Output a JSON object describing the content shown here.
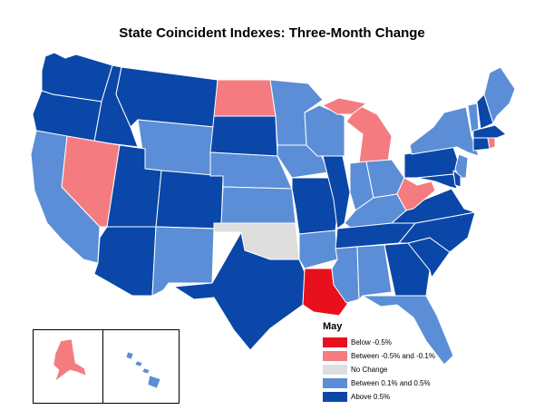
{
  "title": "State Coincident Indexes: Three-Month Change",
  "legend": {
    "title": "May",
    "items": [
      {
        "label": "Below -0.5%",
        "color": "#e8101c"
      },
      {
        "label": "Between -0.5% and -0.1%",
        "color": "#f47c80"
      },
      {
        "label": "No Change",
        "color": "#dedede"
      },
      {
        "label": "Between 0.1% and 0.5%",
        "color": "#5b8ed6"
      },
      {
        "label": "Above 0.5%",
        "color": "#0a47a8"
      }
    ]
  },
  "colors": {
    "below": "#e8101c",
    "slightly_below": "#f47c80",
    "no_change": "#dedede",
    "slightly_above": "#5b8ed6",
    "above": "#0a47a8",
    "border": "#ffffff"
  },
  "states": {
    "WA": "above",
    "OR": "above",
    "ID": "above",
    "MT": "above",
    "WY": "slightly_above",
    "CA": "slightly_above",
    "NV": "slightly_below",
    "UT": "above",
    "CO": "above",
    "AZ": "above",
    "NM": "slightly_above",
    "ND": "slightly_below",
    "SD": "above",
    "NE": "slightly_above",
    "KS": "slightly_above",
    "OK": "no_change",
    "TX": "above",
    "MN": "slightly_above",
    "IA": "slightly_above",
    "MO": "above",
    "AR": "slightly_above",
    "LA": "below",
    "WI": "slightly_above",
    "IL": "above",
    "MI": "slightly_below",
    "IN": "slightly_above",
    "OH": "slightly_above",
    "KY": "slightly_above",
    "TN": "above",
    "MS": "slightly_above",
    "AL": "slightly_above",
    "GA": "above",
    "FL": "slightly_above",
    "SC": "above",
    "NC": "above",
    "VA": "above",
    "WV": "slightly_below",
    "PA": "above",
    "NY": "slightly_above",
    "NJ": "slightly_above",
    "MD": "above",
    "DE": "above",
    "ME": "slightly_above",
    "VT": "slightly_above",
    "NH": "above",
    "MA": "above",
    "CT": "above",
    "RI": "slightly_below",
    "AK": "slightly_below",
    "HI": "slightly_above"
  }
}
